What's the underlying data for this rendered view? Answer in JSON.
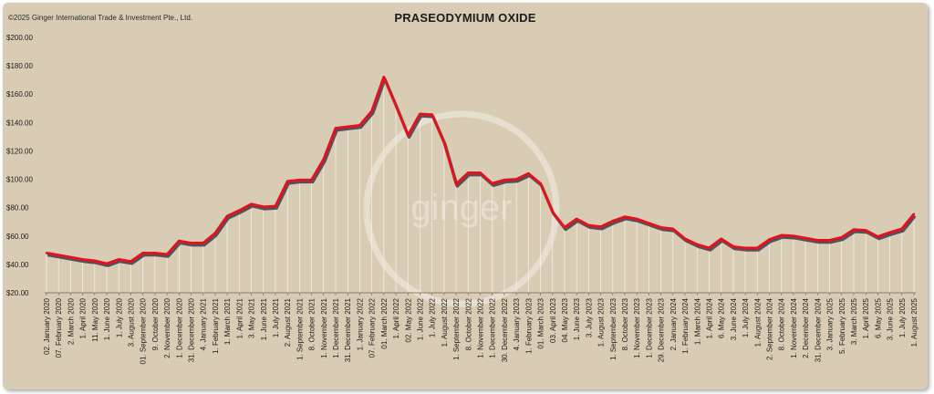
{
  "copyright": "©2025 Ginger International Trade & Investment Pte., Ltd.",
  "watermark": "ginger",
  "colors": {
    "line": "#e0141a",
    "shadow": "#3b3b50",
    "drop": "#f6f2ea",
    "bg": "#d9ccb4"
  },
  "chart_data": {
    "type": "line",
    "title": "PRASEODYMIUM OXIDE",
    "xlabel": "",
    "ylabel": "",
    "ylim": [
      20,
      200
    ],
    "yticks": [
      20,
      40,
      60,
      80,
      100,
      120,
      140,
      160,
      180,
      200
    ],
    "ytick_labels": [
      "$20.00",
      "$40.00",
      "$60.00",
      "$80.00",
      "$100.00",
      "$120.00",
      "$140.00",
      "$160.00",
      "$180.00",
      "$200.00"
    ],
    "grid": false,
    "legend": "none",
    "categories": [
      "02. January 2020",
      "07. February 2020",
      "2. March 2020",
      "1. April 2020",
      "11. May 2020",
      "1. June 2020",
      "1. July 2020",
      "3. August 2020",
      "01. September 2020",
      "9. October 2020",
      "2. November 2020",
      "1. December 2020",
      "31. December 2020",
      "4. January 2021",
      "1. February 2021",
      "1. March 2021",
      "1. April 2021",
      "3. May 2021",
      "1. June 2021",
      "1. July 2021",
      "2. August 2021",
      "1. September 2021",
      "8. October 2021",
      "1. November 2021",
      "1. December 2021",
      "31. December 2021",
      "1. January 2022",
      "07. February 2022",
      "01. March 2022",
      "1. April 2022",
      "02. May 2022",
      "1. June 2022",
      "1. July 2022",
      "1. August 2022",
      "1. September 2022",
      "8. October 2022",
      "1. November 2022",
      "1. December 2022",
      "30. December 2022",
      "4. January 2023",
      "1. February 2023",
      "01. March 2023",
      "03. April 2023",
      "04. May 2023",
      "1. June 2023",
      "3. July 2023",
      "1. August 2023",
      "1. September 2023",
      "8. October 2023",
      "1. November 2023",
      "1. December 2023",
      "29. December 2023",
      "2. January 2024",
      "1. February 2024",
      "1. March 2024",
      "1. April 2024",
      "6. May 2024",
      "3. June 2024",
      "1. July 2024",
      "1. August 2024",
      "2. September 2024",
      "8. October 2024",
      "1. November 2024",
      "2. December 2024",
      "31. December 2024",
      "3. January 2025",
      "5. February 2025",
      "3. March 2025",
      "1. April 2025",
      "6. May 2025",
      "3. June 2025",
      "1. July 2025",
      "1. August 2025"
    ],
    "series": [
      {
        "values": [
          48,
          46.5,
          45,
          43.5,
          42.5,
          40.5,
          43.5,
          42,
          48,
          48,
          47,
          56.5,
          55,
          55,
          62,
          74,
          78,
          82.5,
          80.5,
          81,
          98.5,
          99.5,
          99.5,
          114,
          136,
          137,
          138,
          148,
          172,
          152,
          131,
          146,
          145.5,
          126,
          96.5,
          104.5,
          104.5,
          97,
          99.5,
          100,
          104,
          97,
          77,
          66,
          72,
          67.5,
          66.5,
          70.5,
          73.5,
          72,
          69,
          66,
          65,
          58,
          54,
          51.5,
          58,
          52.5,
          51.5,
          51.5,
          57.5,
          60.5,
          60,
          58.5,
          57,
          57,
          59,
          64.5,
          64,
          59.5,
          62.5,
          65,
          75.5
        ]
      }
    ]
  }
}
